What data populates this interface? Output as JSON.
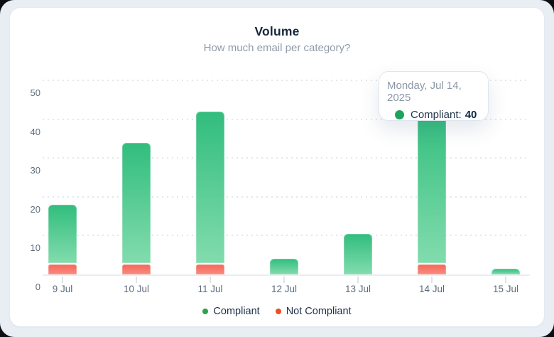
{
  "card": {
    "title": "Volume",
    "subtitle": "How much email per category?"
  },
  "chart_data": {
    "type": "bar",
    "stacked": true,
    "title": "Volume",
    "subtitle": "How much email per category?",
    "categories": [
      "9 Jul",
      "10 Jul",
      "11 Jul",
      "12 Jul",
      "13 Jul",
      "14 Jul",
      "15 Jul"
    ],
    "series": [
      {
        "name": "Compliant",
        "values": [
          15,
          31,
          39,
          4,
          10.5,
          40,
          1.5
        ],
        "color_top": "#31bd7d",
        "color_bottom": "#82dcad"
      },
      {
        "name": "Not Compliant",
        "values": [
          2.5,
          2.5,
          2.5,
          0,
          0,
          2.5,
          0
        ],
        "color_top": "#f4685c",
        "color_bottom": "#fa8a7e"
      }
    ],
    "xlabel": "",
    "ylabel": "",
    "ylim": [
      0,
      50
    ],
    "yticks": [
      "0",
      "10",
      "20",
      "30",
      "40",
      "50"
    ],
    "grid": "dotted-horizontal",
    "legend_position": "bottom",
    "highlighted_category": "14 Jul"
  },
  "legend": [
    {
      "label": "Compliant",
      "color": "#2ca24b"
    },
    {
      "label": "Not Compliant",
      "color": "#f04b26"
    }
  ],
  "tooltip": {
    "date": "Monday, Jul 14, 2025",
    "series": "Compliant",
    "label": "Compliant:",
    "value": "40",
    "dot_color": "#1da35c"
  },
  "colors": {
    "card_background": "#ffffff",
    "page_background": "#e9eef5",
    "title_text": "#15283d",
    "subtitle_text": "#8f9aa9",
    "axis_text": "#5f6c7e",
    "gridline": "#e2e7ec"
  }
}
